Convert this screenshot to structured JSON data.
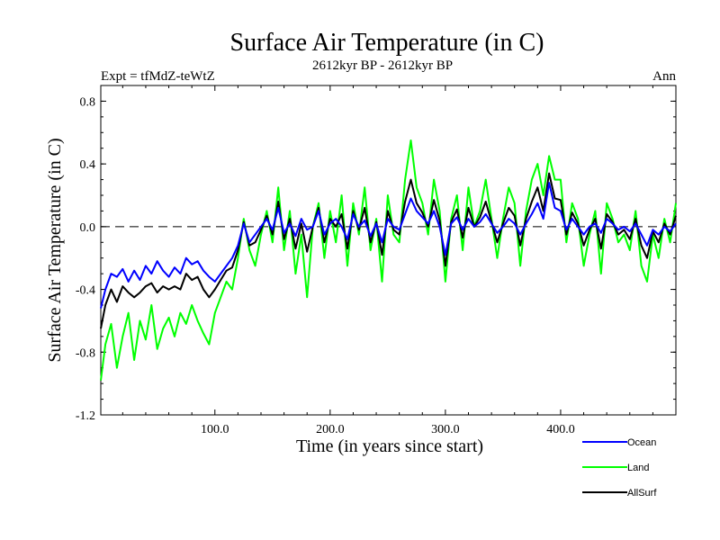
{
  "chart_data": {
    "type": "line",
    "title": "Surface Air Temperature (in C)",
    "subtitle": "2612kyr BP - 2612kyr BP",
    "left_label": "Expt = tfMdZ-teWtZ",
    "right_label": "Ann",
    "xlabel": "Time (in years since start)",
    "ylabel": "Surface Air Temperature (in C)",
    "xlim": [
      1,
      500
    ],
    "ylim": [
      -1.2,
      0.9
    ],
    "x_ticks": [
      100,
      200,
      300,
      400
    ],
    "x_tick_labels": [
      "100.0",
      "200.0",
      "300.0",
      "400.0"
    ],
    "y_ticks": [
      -1.2,
      -0.8,
      -0.4,
      0.0,
      0.4,
      0.8
    ],
    "y_tick_labels": [
      "-1.2",
      "-0.8",
      "-0.4",
      "0.0",
      "0.4",
      "0.8"
    ],
    "reference_line": 0.0,
    "legend_position": "bottom-right",
    "series": [
      {
        "name": "Ocean",
        "color": "#0000ff",
        "x": [
          1,
          5,
          10,
          15,
          20,
          25,
          30,
          35,
          40,
          45,
          50,
          55,
          60,
          65,
          70,
          75,
          80,
          85,
          90,
          95,
          100,
          105,
          110,
          115,
          120,
          125,
          130,
          135,
          140,
          145,
          150,
          155,
          160,
          165,
          170,
          175,
          180,
          185,
          190,
          195,
          200,
          205,
          210,
          215,
          220,
          225,
          230,
          235,
          240,
          245,
          250,
          255,
          260,
          265,
          270,
          275,
          280,
          285,
          290,
          295,
          300,
          305,
          310,
          315,
          320,
          325,
          330,
          335,
          340,
          345,
          350,
          355,
          360,
          365,
          370,
          375,
          380,
          385,
          390,
          395,
          400,
          405,
          410,
          415,
          420,
          425,
          430,
          435,
          440,
          445,
          450,
          455,
          460,
          465,
          470,
          475,
          480,
          485,
          490,
          495,
          500
        ],
        "y": [
          -0.52,
          -0.4,
          -0.3,
          -0.32,
          -0.27,
          -0.35,
          -0.28,
          -0.34,
          -0.25,
          -0.3,
          -0.22,
          -0.28,
          -0.32,
          -0.26,
          -0.3,
          -0.2,
          -0.24,
          -0.22,
          -0.28,
          -0.32,
          -0.35,
          -0.3,
          -0.25,
          -0.2,
          -0.12,
          0.02,
          -0.1,
          -0.05,
          0.0,
          0.05,
          -0.02,
          0.12,
          -0.04,
          0.02,
          -0.06,
          0.05,
          -0.02,
          0.0,
          0.1,
          -0.05,
          0.02,
          0.05,
          0.0,
          -0.08,
          0.08,
          0.0,
          0.04,
          -0.06,
          0.02,
          -0.1,
          0.05,
          0.0,
          -0.02,
          0.08,
          0.18,
          0.1,
          0.06,
          0.02,
          0.1,
          0.0,
          -0.18,
          0.02,
          0.06,
          -0.02,
          0.05,
          0.0,
          0.03,
          0.08,
          0.02,
          -0.04,
          0.0,
          0.05,
          0.02,
          -0.05,
          0.02,
          0.08,
          0.15,
          0.05,
          0.28,
          0.12,
          0.1,
          -0.02,
          0.05,
          0.0,
          -0.05,
          0.0,
          0.02,
          -0.04,
          0.05,
          0.02,
          -0.02,
          0.0,
          -0.03,
          0.02,
          -0.05,
          -0.12,
          -0.02,
          -0.05,
          0.0,
          -0.03,
          0.02
        ]
      },
      {
        "name": "Land",
        "color": "#00ff00",
        "x": [
          1,
          5,
          10,
          15,
          20,
          25,
          30,
          35,
          40,
          45,
          50,
          55,
          60,
          65,
          70,
          75,
          80,
          85,
          90,
          95,
          100,
          105,
          110,
          115,
          120,
          125,
          130,
          135,
          140,
          145,
          150,
          155,
          160,
          165,
          170,
          175,
          180,
          185,
          190,
          195,
          200,
          205,
          210,
          215,
          220,
          225,
          230,
          235,
          240,
          245,
          250,
          255,
          260,
          265,
          270,
          275,
          280,
          285,
          290,
          295,
          300,
          305,
          310,
          315,
          320,
          325,
          330,
          335,
          340,
          345,
          350,
          355,
          360,
          365,
          370,
          375,
          380,
          385,
          390,
          395,
          400,
          405,
          410,
          415,
          420,
          425,
          430,
          435,
          440,
          445,
          450,
          455,
          460,
          465,
          470,
          475,
          480,
          485,
          490,
          495,
          500
        ],
        "y": [
          -0.98,
          -0.75,
          -0.62,
          -0.9,
          -0.7,
          -0.55,
          -0.85,
          -0.6,
          -0.72,
          -0.5,
          -0.78,
          -0.65,
          -0.58,
          -0.7,
          -0.55,
          -0.62,
          -0.5,
          -0.6,
          -0.68,
          -0.75,
          -0.55,
          -0.45,
          -0.35,
          -0.4,
          -0.2,
          0.05,
          -0.15,
          -0.25,
          -0.05,
          0.1,
          -0.1,
          0.25,
          -0.15,
          0.1,
          -0.3,
          -0.05,
          -0.45,
          0.0,
          0.15,
          -0.2,
          0.1,
          -0.1,
          0.2,
          -0.25,
          0.15,
          -0.05,
          0.25,
          -0.15,
          0.05,
          -0.35,
          0.2,
          -0.05,
          -0.1,
          0.3,
          0.55,
          0.25,
          0.15,
          -0.05,
          0.3,
          0.1,
          -0.35,
          0.05,
          0.2,
          -0.15,
          0.25,
          0.0,
          0.1,
          0.3,
          0.05,
          -0.2,
          0.05,
          0.25,
          0.15,
          -0.25,
          0.1,
          0.3,
          0.4,
          0.2,
          0.45,
          0.3,
          0.3,
          -0.1,
          0.15,
          0.05,
          -0.25,
          -0.05,
          0.1,
          -0.3,
          0.15,
          0.05,
          -0.1,
          -0.05,
          -0.15,
          0.1,
          -0.25,
          -0.35,
          -0.05,
          -0.2,
          0.05,
          -0.1,
          0.15
        ]
      },
      {
        "name": "AllSurf",
        "color": "#000000",
        "x": [
          1,
          5,
          10,
          15,
          20,
          25,
          30,
          35,
          40,
          45,
          50,
          55,
          60,
          65,
          70,
          75,
          80,
          85,
          90,
          95,
          100,
          105,
          110,
          115,
          120,
          125,
          130,
          135,
          140,
          145,
          150,
          155,
          160,
          165,
          170,
          175,
          180,
          185,
          190,
          195,
          200,
          205,
          210,
          215,
          220,
          225,
          230,
          235,
          240,
          245,
          250,
          255,
          260,
          265,
          270,
          275,
          280,
          285,
          290,
          295,
          300,
          305,
          310,
          315,
          320,
          325,
          330,
          335,
          340,
          345,
          350,
          355,
          360,
          365,
          370,
          375,
          380,
          385,
          390,
          395,
          400,
          405,
          410,
          415,
          420,
          425,
          430,
          435,
          440,
          445,
          450,
          455,
          460,
          465,
          470,
          475,
          480,
          485,
          490,
          495,
          500
        ],
        "y": [
          -0.65,
          -0.5,
          -0.4,
          -0.48,
          -0.38,
          -0.42,
          -0.45,
          -0.42,
          -0.38,
          -0.36,
          -0.42,
          -0.38,
          -0.4,
          -0.38,
          -0.4,
          -0.3,
          -0.34,
          -0.32,
          -0.4,
          -0.45,
          -0.4,
          -0.34,
          -0.28,
          -0.26,
          -0.15,
          0.03,
          -0.12,
          -0.1,
          -0.02,
          0.07,
          -0.05,
          0.16,
          -0.08,
          0.05,
          -0.14,
          0.02,
          -0.16,
          0.0,
          0.12,
          -0.1,
          0.05,
          0.0,
          0.08,
          -0.14,
          0.1,
          -0.02,
          0.12,
          -0.1,
          0.03,
          -0.18,
          0.1,
          -0.02,
          -0.05,
          0.16,
          0.3,
          0.15,
          0.09,
          0.0,
          0.17,
          0.04,
          -0.25,
          0.03,
          0.11,
          -0.07,
          0.12,
          0.0,
          0.06,
          0.16,
          0.03,
          -0.1,
          0.02,
          0.12,
          0.07,
          -0.12,
          0.05,
          0.16,
          0.25,
          0.1,
          0.34,
          0.18,
          0.17,
          -0.05,
          0.09,
          0.02,
          -0.12,
          -0.02,
          0.05,
          -0.14,
          0.08,
          0.03,
          -0.05,
          -0.02,
          -0.08,
          0.05,
          -0.12,
          -0.2,
          -0.03,
          -0.1,
          0.02,
          -0.05,
          0.07
        ]
      }
    ]
  }
}
